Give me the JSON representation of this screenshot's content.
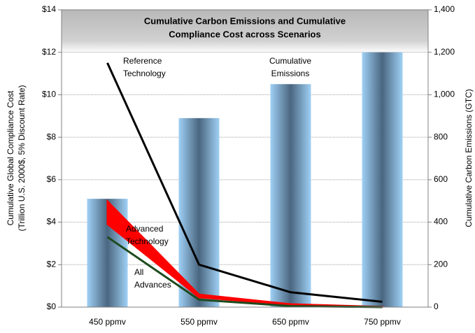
{
  "chart_data": {
    "type": "combo",
    "title": [
      "Cumulative Carbon Emissions and Cumulative",
      "Compliance Cost across Scenarios"
    ],
    "y_label": [
      "Cumulative Global Compliance Cost",
      "(Trillion U.S. 2000$, 5% Discount Rate)"
    ],
    "y2_label": "Cumulative Carbon Emissions (GTC)",
    "categories": [
      "450 ppmv",
      "550 ppmv",
      "650 ppmv",
      "750 ppmv"
    ],
    "ylim": [
      0,
      14
    ],
    "yticks": [
      {
        "value": 0,
        "label": "$0"
      },
      {
        "value": 2,
        "label": "$2"
      },
      {
        "value": 4,
        "label": "$4"
      },
      {
        "value": 6,
        "label": "$6"
      },
      {
        "value": 8,
        "label": "$8"
      },
      {
        "value": 10,
        "label": "$10"
      },
      {
        "value": 12,
        "label": "$12"
      },
      {
        "value": 14,
        "label": "$14"
      }
    ],
    "y2lim": [
      0,
      1400
    ],
    "y2ticks": [
      0,
      200,
      400,
      600,
      800,
      {
        "value": 1000,
        "label": "1,000"
      },
      {
        "value": 1200,
        "label": "1,200"
      },
      {
        "value": 1400,
        "label": "1,400"
      }
    ],
    "grid": true,
    "series": [
      {
        "name": [
          "Cumulative",
          "Emissions"
        ],
        "type": "bar",
        "axis": "y2",
        "color": "#9fd0f5",
        "values": [
          510,
          890,
          1050,
          1200
        ]
      },
      {
        "name": [
          "Reference",
          "Technology"
        ],
        "type": "line",
        "color": "#000000",
        "values": [
          11.5,
          2.0,
          0.7,
          0.25
        ]
      },
      {
        "name": [
          "Advanced",
          "Technology"
        ],
        "type": "band",
        "color": "#ff0000",
        "values": [
          5.0,
          0.6,
          0.15,
          0.02
        ],
        "lower": [
          3.9,
          0.45,
          0.1,
          0.01
        ]
      },
      {
        "name": [
          "All",
          "Advances"
        ],
        "type": "line",
        "color": "#1e4a1e",
        "values": [
          3.3,
          0.35,
          0.05,
          0.0
        ]
      }
    ]
  }
}
